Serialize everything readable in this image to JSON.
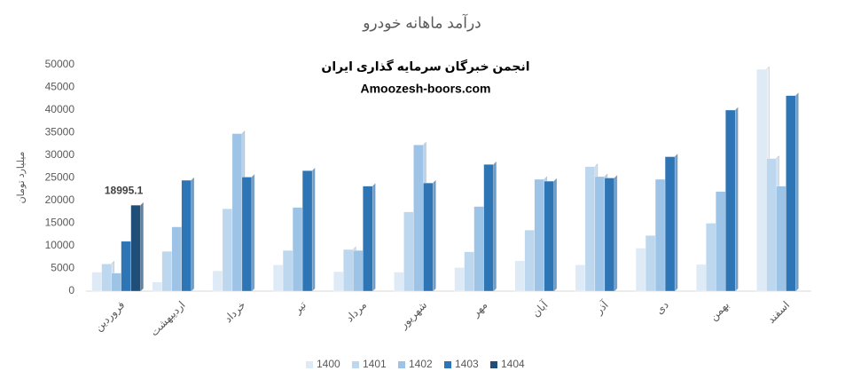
{
  "chart_data": {
    "type": "bar",
    "title": "درآمد ماهانه خودرو",
    "annotations": [
      "انجمن خبرگان سرمایه گذاری ایران",
      "Amoozesh-boors.com"
    ],
    "y_label": "میلیارد تومان",
    "categories": [
      "فروردین",
      "اردیبهشت",
      "خرداد",
      "تیر",
      "مرداد",
      "شهریور",
      "مهر",
      "آبان",
      "آذر",
      "دی",
      "بهمن",
      "اسفند"
    ],
    "series": [
      {
        "name": "1400",
        "color": "#deebf7",
        "values": [
          4200,
          2000,
          4500,
          5800,
          4300,
          4200,
          5200,
          6700,
          5800,
          9500,
          5900,
          49000
        ]
      },
      {
        "name": "1401",
        "color": "#bdd7ee",
        "values": [
          6000,
          8800,
          18200,
          9000,
          9200,
          17500,
          8700,
          13500,
          27500,
          12300,
          15000,
          29300
        ]
      },
      {
        "name": "1402",
        "color": "#9dc3e6",
        "values": [
          4000,
          14200,
          34800,
          18500,
          9000,
          32300,
          18700,
          24700,
          25300,
          24700,
          22000,
          23200
        ]
      },
      {
        "name": "1403",
        "color": "#2e75b6",
        "values": [
          11000,
          24500,
          25200,
          26600,
          23200,
          23900,
          28000,
          24300,
          25000,
          29700,
          40000,
          43200
        ]
      },
      {
        "name": "1404",
        "color": "#1f4e79",
        "values": [
          18995.1,
          null,
          null,
          null,
          null,
          null,
          null,
          null,
          null,
          null,
          null,
          null
        ]
      }
    ],
    "ylim": [
      0,
      50000
    ],
    "yticks": [
      0,
      5000,
      10000,
      15000,
      20000,
      25000,
      30000,
      35000,
      40000,
      45000,
      50000
    ],
    "grid": false,
    "legend": "bottom"
  }
}
